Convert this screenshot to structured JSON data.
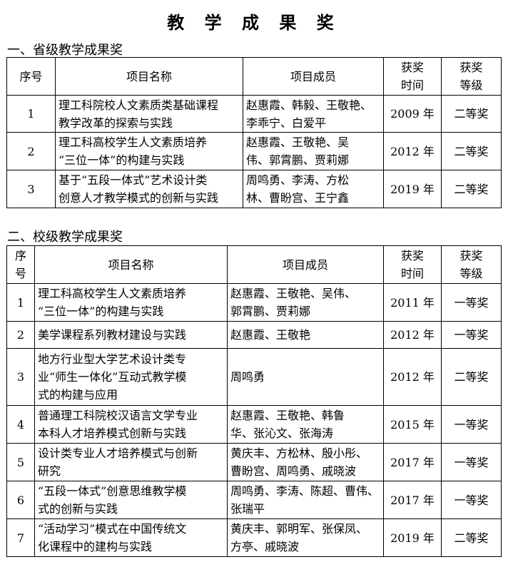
{
  "title": "教 学 成 果 奖",
  "section1": {
    "heading": "一、省级教学成果奖",
    "headers": [
      "序号",
      "项目名称",
      "项目成员",
      "获奖\n时间",
      "获奖\n等级"
    ],
    "rows": [
      {
        "no": "1",
        "name": "理工科院校人文素质类基础课程\n教学改革的探索与实践",
        "members": "赵惠霞、韩毅、王敬艳、\n李乖宁、白爱平",
        "year": "2009 年",
        "level": "二等奖"
      },
      {
        "no": "2",
        "name": "理工科高校学生人文素质培养\n“三位一体”的构建与实践",
        "members": "赵惠霞、王敬艳、吴\n伟、郭霄鹏、贾莉娜",
        "year": "2012 年",
        "level": "二等奖"
      },
      {
        "no": "3",
        "name": "基于“五段一体式”艺术设计类\n创意人才教学模式的创新与实践",
        "members": "周鸣勇、李涛、方松\n林、曹盼宫、王宁鑫",
        "year": "2019 年",
        "level": "二等奖"
      }
    ]
  },
  "section2": {
    "heading": "二、校级教学成果奖",
    "headers": [
      "序\n号",
      "项目名称",
      "项目成员",
      "获奖\n时间",
      "获奖\n等级"
    ],
    "rows": [
      {
        "no": "1",
        "name": "理工科高校学生人文素质培养\n“三位一体”的构建与实践",
        "members": "赵惠霞、王敬艳、吴伟、\n郭霄鹏、贾莉娜",
        "year": "2011 年",
        "level": "一等奖"
      },
      {
        "no": "2",
        "name": "美学课程系列教材建设与实践",
        "members": "赵惠霞、王敬艳",
        "year": "2012 年",
        "level": "一等奖"
      },
      {
        "no": "3",
        "name": "地方行业型大学艺术设计类专\n业“师生一体化”互动式教学模\n式的构建与应用",
        "members": "周鸣勇",
        "year": "2012 年",
        "level": "二等奖"
      },
      {
        "no": "4",
        "name": "普通理工科院校汉语言文学专业\n本科人才培养模式创新与实践",
        "members": "赵惠霞、王敬艳、韩鲁\n华、张沁文、张海涛",
        "year": "2015 年",
        "level": "一等奖"
      },
      {
        "no": "5",
        "name": "设计类专业人才培养模式与创新\n研究",
        "members": "黄庆丰、方松林、殷小彤、\n曹盼宫、周鸣勇、戚晓波",
        "year": "2017 年",
        "level": "一等奖"
      },
      {
        "no": "6",
        "name": "“五段一体式”创意思维教学模\n式的创新与实践",
        "members": "周鸣勇、李涛、陈超、曹伟、\n张瑞平",
        "year": "2017 年",
        "level": "一等奖"
      },
      {
        "no": "7",
        "name": "“活动学习”模式在中国传统文\n化课程中的建构与实践",
        "members": "黄庆丰、郭明军、张保凤、\n方亭、戚晓波",
        "year": "2019 年",
        "level": "二等奖"
      }
    ]
  }
}
